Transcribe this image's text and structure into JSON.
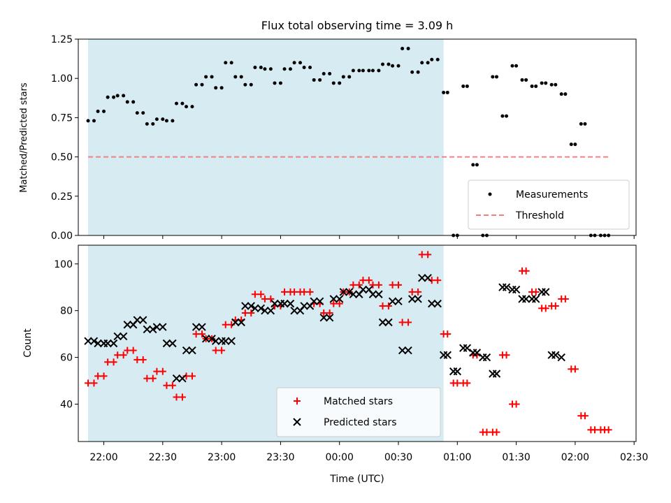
{
  "chart_data": [
    {
      "type": "scatter",
      "title": "Flux total observing time = 3.09 h",
      "ylabel": "Matched/Predicted stars",
      "xlabel": "",
      "ylim": [
        0,
        1.25
      ],
      "xlim": [
        "21:47",
        "02:31"
      ],
      "yticks": [
        "0.00",
        "0.25",
        "0.50",
        "0.75",
        "1.00",
        "1.25"
      ],
      "threshold": 0.5,
      "threshold_x": [
        "21:52",
        "02:17"
      ],
      "shaded_x": [
        "21:52",
        "00:53"
      ],
      "legend_position": "lower right",
      "series": [
        {
          "name": "Measurements",
          "x": [
            "21:52",
            "21:55",
            "21:57",
            "22:00",
            "22:02",
            "22:05",
            "22:07",
            "22:10",
            "22:12",
            "22:15",
            "22:17",
            "22:20",
            "22:22",
            "22:25",
            "22:27",
            "22:30",
            "22:32",
            "22:35",
            "22:37",
            "22:40",
            "22:42",
            "22:45",
            "22:47",
            "22:50",
            "22:52",
            "22:55",
            "22:57",
            "23:00",
            "23:02",
            "23:05",
            "23:07",
            "23:10",
            "23:12",
            "23:15",
            "23:17",
            "23:20",
            "23:22",
            "23:25",
            "23:27",
            "23:30",
            "23:32",
            "23:35",
            "23:37",
            "23:40",
            "23:42",
            "23:45",
            "23:47",
            "23:50",
            "23:52",
            "23:55",
            "23:57",
            "00:00",
            "00:02",
            "00:05",
            "00:07",
            "00:10",
            "00:12",
            "00:15",
            "00:17",
            "00:20",
            "00:22",
            "00:25",
            "00:27",
            "00:30",
            "00:32",
            "00:35",
            "00:37",
            "00:40",
            "00:42",
            "00:45",
            "00:47",
            "00:50",
            "00:53",
            "00:55",
            "00:58",
            "01:00",
            "01:03",
            "01:05",
            "01:08",
            "01:10",
            "01:13",
            "01:15",
            "01:18",
            "01:20",
            "01:23",
            "01:25",
            "01:28",
            "01:30",
            "01:33",
            "01:35",
            "01:38",
            "01:40",
            "01:43",
            "01:45",
            "01:48",
            "01:50",
            "01:53",
            "01:55",
            "01:58",
            "02:00",
            "02:03",
            "02:05",
            "02:08",
            "02:10",
            "02:13",
            "02:15",
            "02:17"
          ],
          "y": [
            0.73,
            0.73,
            0.79,
            0.79,
            0.88,
            0.88,
            0.89,
            0.89,
            0.85,
            0.85,
            0.78,
            0.78,
            0.71,
            0.71,
            0.74,
            0.74,
            0.73,
            0.73,
            0.84,
            0.84,
            0.82,
            0.82,
            0.96,
            0.96,
            1.01,
            1.01,
            0.94,
            0.94,
            1.1,
            1.1,
            1.01,
            1.01,
            0.96,
            0.96,
            1.07,
            1.07,
            1.06,
            1.06,
            0.97,
            0.97,
            1.06,
            1.06,
            1.1,
            1.1,
            1.07,
            1.07,
            0.99,
            0.99,
            1.03,
            1.03,
            0.97,
            0.97,
            1.01,
            1.01,
            1.05,
            1.05,
            1.05,
            1.05,
            1.05,
            1.05,
            1.09,
            1.09,
            1.08,
            1.08,
            1.19,
            1.19,
            1.04,
            1.04,
            1.1,
            1.1,
            1.12,
            1.12,
            0.91,
            0.91,
            0.0,
            0.0,
            0.95,
            0.95,
            0.45,
            0.45,
            0.0,
            0.0,
            1.01,
            1.01,
            0.76,
            0.76,
            1.08,
            1.08,
            0.99,
            0.99,
            0.95,
            0.95,
            0.97,
            0.97,
            0.96,
            0.96,
            0.9,
            0.9,
            0.58,
            0.58,
            0.71,
            0.71,
            0.0,
            0.0,
            0.0,
            0.0,
            0.0
          ],
          "marker": "dot",
          "color": "#000000"
        },
        {
          "name": "Threshold",
          "marker": "dashed-line",
          "color": "#f08080"
        }
      ]
    },
    {
      "type": "scatter",
      "title": "",
      "xlabel": "Time (UTC)",
      "ylabel": "Count",
      "ylim": [
        24,
        108
      ],
      "xlim": [
        "21:47",
        "02:31"
      ],
      "xticks": [
        "22:00",
        "22:30",
        "23:00",
        "23:30",
        "00:00",
        "00:30",
        "01:00",
        "01:30",
        "02:00",
        "02:30"
      ],
      "yticks": [
        "40",
        "60",
        "80",
        "100"
      ],
      "shaded_x": [
        "21:52",
        "00:53"
      ],
      "legend_position": "lower center",
      "series": [
        {
          "name": "Matched stars",
          "x": [
            "21:52",
            "21:55",
            "21:57",
            "22:00",
            "22:02",
            "22:05",
            "22:07",
            "22:10",
            "22:12",
            "22:15",
            "22:17",
            "22:20",
            "22:22",
            "22:25",
            "22:27",
            "22:30",
            "22:32",
            "22:35",
            "22:37",
            "22:40",
            "22:42",
            "22:45",
            "22:47",
            "22:50",
            "22:52",
            "22:55",
            "22:57",
            "23:00",
            "23:02",
            "23:05",
            "23:07",
            "23:10",
            "23:12",
            "23:15",
            "23:17",
            "23:20",
            "23:22",
            "23:25",
            "23:27",
            "23:30",
            "23:32",
            "23:35",
            "23:37",
            "23:40",
            "23:42",
            "23:45",
            "23:47",
            "23:50",
            "23:52",
            "23:55",
            "23:57",
            "00:00",
            "00:02",
            "00:05",
            "00:07",
            "00:10",
            "00:12",
            "00:15",
            "00:17",
            "00:20",
            "00:22",
            "00:25",
            "00:27",
            "00:30",
            "00:32",
            "00:35",
            "00:37",
            "00:40",
            "00:42",
            "00:45",
            "00:47",
            "00:50",
            "00:53",
            "00:55",
            "00:58",
            "01:00",
            "01:03",
            "01:05",
            "01:08",
            "01:10",
            "01:13",
            "01:15",
            "01:18",
            "01:20",
            "01:23",
            "01:25",
            "01:28",
            "01:30",
            "01:33",
            "01:35",
            "01:38",
            "01:40",
            "01:43",
            "01:45",
            "01:48",
            "01:50",
            "01:53",
            "01:55",
            "01:58",
            "02:00",
            "02:03",
            "02:05",
            "02:08",
            "02:10",
            "02:13",
            "02:15",
            "02:17"
          ],
          "y": [
            49,
            49,
            52,
            52,
            58,
            58,
            61,
            61,
            63,
            63,
            59,
            59,
            51,
            51,
            54,
            54,
            48,
            48,
            43,
            43,
            52,
            52,
            70,
            70,
            68,
            68,
            63,
            63,
            74,
            74,
            76,
            76,
            79,
            79,
            87,
            87,
            85,
            85,
            82,
            82,
            88,
            88,
            88,
            88,
            88,
            88,
            83,
            83,
            79,
            79,
            83,
            83,
            88,
            88,
            91,
            91,
            93,
            93,
            91,
            91,
            82,
            82,
            91,
            91,
            75,
            75,
            88,
            88,
            104,
            104,
            93,
            93,
            70,
            70,
            49,
            49,
            49,
            49,
            61,
            61,
            28,
            28,
            28,
            28,
            61,
            61,
            40,
            40,
            97,
            97,
            88,
            88,
            81,
            81,
            82,
            82,
            85,
            85,
            55,
            55,
            35,
            35,
            29,
            29,
            29,
            29,
            29
          ],
          "marker": "plus",
          "color": "#ff0000"
        },
        {
          "name": "Predicted stars",
          "x": [
            "21:52",
            "21:55",
            "21:57",
            "22:00",
            "22:02",
            "22:05",
            "22:07",
            "22:10",
            "22:12",
            "22:15",
            "22:17",
            "22:20",
            "22:22",
            "22:25",
            "22:27",
            "22:30",
            "22:32",
            "22:35",
            "22:37",
            "22:40",
            "22:42",
            "22:45",
            "22:47",
            "22:50",
            "22:52",
            "22:55",
            "22:57",
            "23:00",
            "23:02",
            "23:05",
            "23:07",
            "23:10",
            "23:12",
            "23:15",
            "23:17",
            "23:20",
            "23:22",
            "23:25",
            "23:27",
            "23:30",
            "23:32",
            "23:35",
            "23:37",
            "23:40",
            "23:42",
            "23:45",
            "23:47",
            "23:50",
            "23:52",
            "23:55",
            "23:57",
            "00:00",
            "00:02",
            "00:05",
            "00:07",
            "00:10",
            "00:12",
            "00:15",
            "00:17",
            "00:20",
            "00:22",
            "00:25",
            "00:27",
            "00:30",
            "00:32",
            "00:35",
            "00:37",
            "00:40",
            "00:42",
            "00:45",
            "00:47",
            "00:50",
            "00:53",
            "00:55",
            "00:58",
            "01:00",
            "01:03",
            "01:05",
            "01:08",
            "01:10",
            "01:13",
            "01:15",
            "01:18",
            "01:20",
            "01:23",
            "01:25",
            "01:28",
            "01:30",
            "01:33",
            "01:35",
            "01:38",
            "01:40",
            "01:43",
            "01:45",
            "01:48",
            "01:50",
            "01:53"
          ],
          "y": [
            67,
            67,
            66,
            66,
            66,
            66,
            69,
            69,
            74,
            74,
            76,
            76,
            72,
            72,
            73,
            73,
            66,
            66,
            51,
            51,
            63,
            63,
            73,
            73,
            68,
            68,
            67,
            67,
            67,
            67,
            75,
            75,
            82,
            82,
            81,
            81,
            80,
            80,
            83,
            83,
            83,
            83,
            80,
            80,
            82,
            82,
            84,
            84,
            77,
            77,
            85,
            85,
            88,
            88,
            87,
            87,
            89,
            89,
            87,
            87,
            75,
            75,
            84,
            84,
            63,
            63,
            85,
            85,
            94,
            94,
            83,
            83,
            61,
            61,
            54,
            54,
            64,
            64,
            62,
            62,
            60,
            60,
            53,
            53,
            90,
            90,
            89,
            89,
            85,
            85,
            85,
            85,
            88,
            88,
            61,
            61,
            60
          ],
          "marker": "x",
          "color": "#000000"
        }
      ]
    }
  ]
}
